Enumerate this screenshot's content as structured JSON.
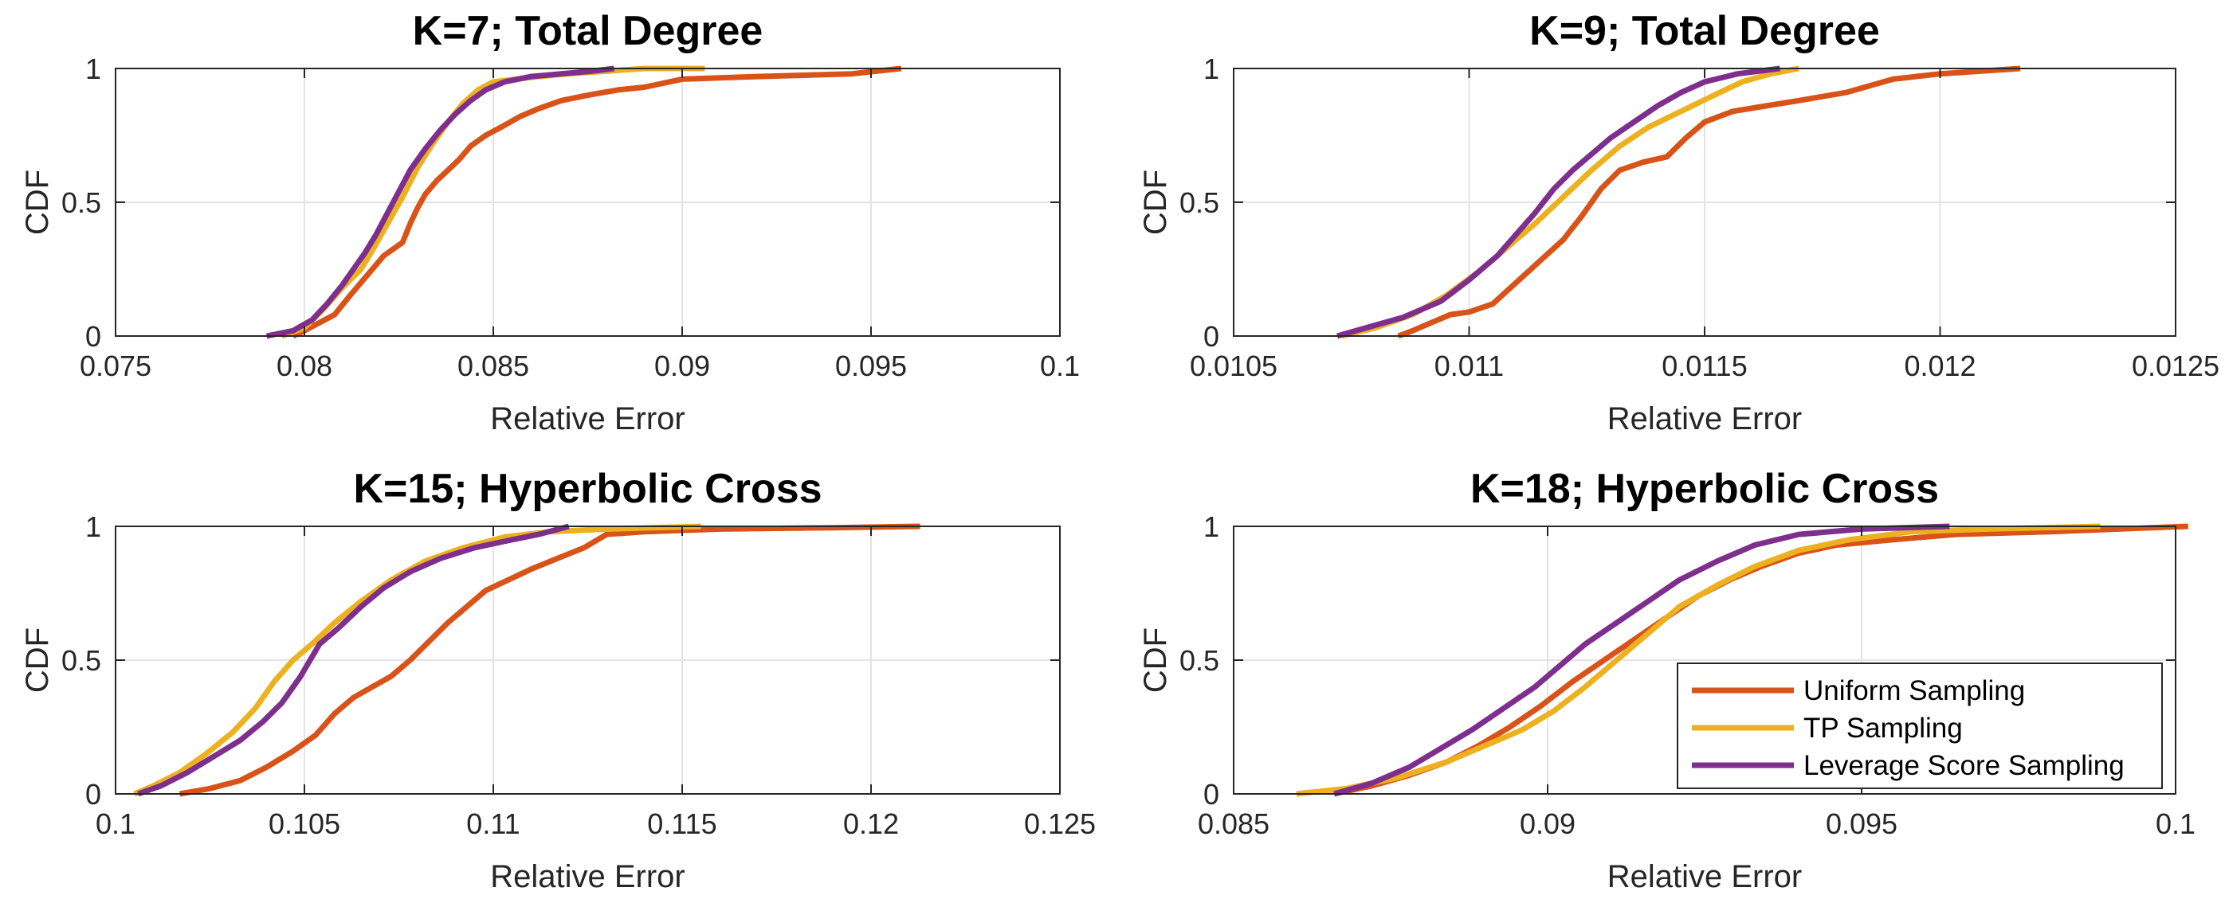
{
  "chart_data": [
    {
      "type": "line",
      "title": "K=7; Total Degree",
      "xlabel": "Relative Error",
      "ylabel": "CDF",
      "xlim": [
        0.075,
        0.1
      ],
      "ylim": [
        0,
        1
      ],
      "xticks": [
        0.075,
        0.08,
        0.085,
        0.09,
        0.095,
        0.1
      ],
      "xtick_labels": [
        "0.075",
        "0.08",
        "0.085",
        "0.09",
        "0.095",
        "0.1"
      ],
      "yticks": [
        0,
        0.5,
        1
      ],
      "ytick_labels": [
        "0",
        "0.5",
        "1"
      ],
      "grid": true,
      "series": [
        {
          "name": "Uniform Sampling",
          "color": "#D95319",
          "x": [
            0.0797,
            0.08,
            0.0808,
            0.0812,
            0.0815,
            0.0818,
            0.0821,
            0.0823,
            0.0826,
            0.0828,
            0.083,
            0.0832,
            0.0835,
            0.0838,
            0.0841,
            0.0844,
            0.0848,
            0.0852,
            0.0857,
            0.0862,
            0.0868,
            0.0875,
            0.0883,
            0.089,
            0.09,
            0.092,
            0.0945,
            0.0958
          ],
          "y": [
            0,
            0.02,
            0.08,
            0.15,
            0.2,
            0.25,
            0.3,
            0.32,
            0.35,
            0.42,
            0.48,
            0.53,
            0.58,
            0.62,
            0.66,
            0.71,
            0.75,
            0.78,
            0.82,
            0.85,
            0.88,
            0.9,
            0.92,
            0.93,
            0.96,
            0.97,
            0.98,
            1.0
          ]
        },
        {
          "name": "TP Sampling",
          "color": "#EDB120",
          "x": [
            0.0794,
            0.08,
            0.0805,
            0.081,
            0.0815,
            0.0818,
            0.0822,
            0.0826,
            0.083,
            0.0834,
            0.0838,
            0.0842,
            0.0846,
            0.085,
            0.0856,
            0.0862,
            0.087,
            0.088,
            0.089,
            0.0906
          ],
          "y": [
            0,
            0.03,
            0.1,
            0.18,
            0.25,
            0.32,
            0.42,
            0.52,
            0.63,
            0.72,
            0.8,
            0.87,
            0.92,
            0.95,
            0.96,
            0.97,
            0.98,
            0.99,
            1.0,
            1.0
          ]
        },
        {
          "name": "Leverage Score Sampling",
          "color": "#7E2F8E",
          "x": [
            0.079,
            0.0797,
            0.0802,
            0.0806,
            0.081,
            0.0813,
            0.0816,
            0.0819,
            0.0822,
            0.0825,
            0.0828,
            0.0832,
            0.0836,
            0.084,
            0.0844,
            0.0848,
            0.0853,
            0.086,
            0.0868,
            0.0876,
            0.0882
          ],
          "y": [
            0,
            0.02,
            0.06,
            0.12,
            0.19,
            0.25,
            0.31,
            0.38,
            0.46,
            0.54,
            0.62,
            0.7,
            0.77,
            0.83,
            0.88,
            0.92,
            0.95,
            0.97,
            0.98,
            0.99,
            1.0
          ]
        }
      ]
    },
    {
      "type": "line",
      "title": "K=9; Total Degree",
      "xlabel": "Relative Error",
      "ylabel": "CDF",
      "xlim": [
        0.0105,
        0.0125
      ],
      "ylim": [
        0,
        1
      ],
      "xticks": [
        0.0105,
        0.011,
        0.0115,
        0.012,
        0.0125
      ],
      "xtick_labels": [
        "0.0105",
        "0.011",
        "0.0115",
        "0.012",
        "0.0125"
      ],
      "yticks": [
        0,
        0.5,
        1
      ],
      "ytick_labels": [
        "0",
        "0.5",
        "1"
      ],
      "grid": true,
      "series": [
        {
          "name": "Uniform Sampling",
          "color": "#D95319",
          "x": [
            0.01085,
            0.01088,
            0.01092,
            0.01096,
            0.011,
            0.01105,
            0.0111,
            0.01115,
            0.0112,
            0.01124,
            0.01128,
            0.01132,
            0.01137,
            0.01142,
            0.01146,
            0.0115,
            0.01156,
            0.01163,
            0.0117,
            0.0118,
            0.0119,
            0.012,
            0.01217
          ],
          "y": [
            0,
            0.02,
            0.05,
            0.08,
            0.09,
            0.12,
            0.2,
            0.28,
            0.36,
            0.45,
            0.55,
            0.62,
            0.65,
            0.67,
            0.74,
            0.8,
            0.84,
            0.86,
            0.88,
            0.91,
            0.96,
            0.98,
            1.0
          ]
        },
        {
          "name": "TP Sampling",
          "color": "#EDB120",
          "x": [
            0.01073,
            0.0108,
            0.01088,
            0.01095,
            0.01102,
            0.01108,
            0.01114,
            0.0112,
            0.01126,
            0.01132,
            0.01138,
            0.01145,
            0.01152,
            0.01158,
            0.01164,
            0.0117
          ],
          "y": [
            0,
            0.03,
            0.08,
            0.15,
            0.24,
            0.33,
            0.42,
            0.52,
            0.62,
            0.71,
            0.78,
            0.84,
            0.9,
            0.95,
            0.98,
            1.0
          ]
        },
        {
          "name": "Leverage Score Sampling",
          "color": "#7E2F8E",
          "x": [
            0.01072,
            0.01078,
            0.01086,
            0.01094,
            0.011,
            0.01106,
            0.0111,
            0.01114,
            0.01118,
            0.01122,
            0.01126,
            0.0113,
            0.01135,
            0.0114,
            0.01145,
            0.0115,
            0.01157,
            0.01166
          ],
          "y": [
            0,
            0.03,
            0.07,
            0.13,
            0.21,
            0.3,
            0.38,
            0.46,
            0.55,
            0.62,
            0.68,
            0.74,
            0.8,
            0.86,
            0.91,
            0.95,
            0.98,
            1.0
          ]
        }
      ]
    },
    {
      "type": "line",
      "title": "K=15; Hyperbolic Cross",
      "xlabel": "Relative Error",
      "ylabel": "CDF",
      "xlim": [
        0.1,
        0.125
      ],
      "ylim": [
        0,
        1
      ],
      "xticks": [
        0.1,
        0.105,
        0.11,
        0.115,
        0.12,
        0.125
      ],
      "xtick_labels": [
        "0.1",
        "0.105",
        "0.11",
        "0.115",
        "0.12",
        "0.125"
      ],
      "yticks": [
        0,
        0.5,
        1
      ],
      "ytick_labels": [
        "0",
        "0.5",
        "1"
      ],
      "grid": true,
      "series": [
        {
          "name": "Uniform Sampling",
          "color": "#D95319",
          "x": [
            0.1017,
            0.1025,
            0.1033,
            0.104,
            0.1047,
            0.1053,
            0.1058,
            0.1063,
            0.1068,
            0.1073,
            0.1078,
            0.1083,
            0.1088,
            0.1093,
            0.1098,
            0.1104,
            0.111,
            0.1117,
            0.1124,
            0.113,
            0.114,
            0.116,
            0.119,
            0.1213
          ],
          "y": [
            0,
            0.02,
            0.05,
            0.1,
            0.16,
            0.22,
            0.3,
            0.36,
            0.4,
            0.44,
            0.5,
            0.57,
            0.64,
            0.7,
            0.76,
            0.8,
            0.84,
            0.88,
            0.92,
            0.97,
            0.98,
            0.99,
            0.995,
            1.0
          ]
        },
        {
          "name": "TP Sampling",
          "color": "#EDB120",
          "x": [
            0.1005,
            0.101,
            0.1017,
            0.1024,
            0.1031,
            0.1037,
            0.1042,
            0.1047,
            0.1052,
            0.1058,
            0.1065,
            0.1073,
            0.1082,
            0.1092,
            0.1103,
            0.1115,
            0.113,
            0.1155
          ],
          "y": [
            0,
            0.03,
            0.08,
            0.15,
            0.23,
            0.32,
            0.42,
            0.5,
            0.56,
            0.64,
            0.72,
            0.8,
            0.87,
            0.92,
            0.96,
            0.98,
            0.99,
            1.0
          ]
        },
        {
          "name": "Leverage Score Sampling",
          "color": "#7E2F8E",
          "x": [
            0.1006,
            0.1012,
            0.1019,
            0.1026,
            0.1033,
            0.1039,
            0.1044,
            0.1049,
            0.1054,
            0.1059,
            0.1065,
            0.1071,
            0.1078,
            0.1086,
            0.1095,
            0.1105,
            0.1112,
            0.112
          ],
          "y": [
            0,
            0.03,
            0.08,
            0.14,
            0.2,
            0.27,
            0.34,
            0.44,
            0.56,
            0.62,
            0.7,
            0.77,
            0.83,
            0.88,
            0.92,
            0.95,
            0.97,
            1.0
          ]
        }
      ]
    },
    {
      "type": "line",
      "title": "K=18; Hyperbolic Cross",
      "xlabel": "Relative Error",
      "ylabel": "CDF",
      "xlim": [
        0.085,
        0.1
      ],
      "ylim": [
        0,
        1
      ],
      "xticks": [
        0.085,
        0.09,
        0.095,
        0.1
      ],
      "xtick_labels": [
        "0.085",
        "0.09",
        "0.095",
        "0.1"
      ],
      "yticks": [
        0,
        0.5,
        1
      ],
      "ytick_labels": [
        "0",
        "0.5",
        "1"
      ],
      "grid": true,
      "legend": {
        "location": "bottom-right",
        "entries": [
          "Uniform Sampling",
          "TP Sampling",
          "Leverage Score Sampling"
        ]
      },
      "series": [
        {
          "name": "Uniform Sampling",
          "color": "#D95319",
          "x": [
            0.0866,
            0.0872,
            0.0878,
            0.0884,
            0.0889,
            0.0894,
            0.0899,
            0.0904,
            0.0909,
            0.0914,
            0.0919,
            0.0924,
            0.0929,
            0.0934,
            0.094,
            0.0946,
            0.0955,
            0.0965,
            0.098,
            0.1002
          ],
          "y": [
            0,
            0.03,
            0.07,
            0.12,
            0.18,
            0.25,
            0.33,
            0.42,
            0.5,
            0.58,
            0.66,
            0.74,
            0.8,
            0.85,
            0.9,
            0.93,
            0.95,
            0.97,
            0.98,
            1.0
          ]
        },
        {
          "name": "TP Sampling",
          "color": "#EDB120",
          "x": [
            0.086,
            0.0868,
            0.0876,
            0.0884,
            0.089,
            0.0896,
            0.0901,
            0.0906,
            0.0911,
            0.0916,
            0.0921,
            0.0927,
            0.0933,
            0.094,
            0.0948,
            0.0958,
            0.097,
            0.0988
          ],
          "y": [
            0,
            0.02,
            0.06,
            0.12,
            0.18,
            0.24,
            0.31,
            0.4,
            0.5,
            0.6,
            0.7,
            0.78,
            0.85,
            0.91,
            0.95,
            0.98,
            0.99,
            1.0
          ]
        },
        {
          "name": "Leverage Score Sampling",
          "color": "#7E2F8E",
          "x": [
            0.0866,
            0.0872,
            0.0878,
            0.0883,
            0.0888,
            0.0893,
            0.0898,
            0.0902,
            0.0906,
            0.0911,
            0.0916,
            0.0921,
            0.0927,
            0.0933,
            0.094,
            0.095,
            0.0964
          ],
          "y": [
            0,
            0.04,
            0.1,
            0.17,
            0.24,
            0.32,
            0.4,
            0.48,
            0.56,
            0.64,
            0.72,
            0.8,
            0.87,
            0.93,
            0.97,
            0.99,
            1.0
          ]
        }
      ]
    }
  ]
}
